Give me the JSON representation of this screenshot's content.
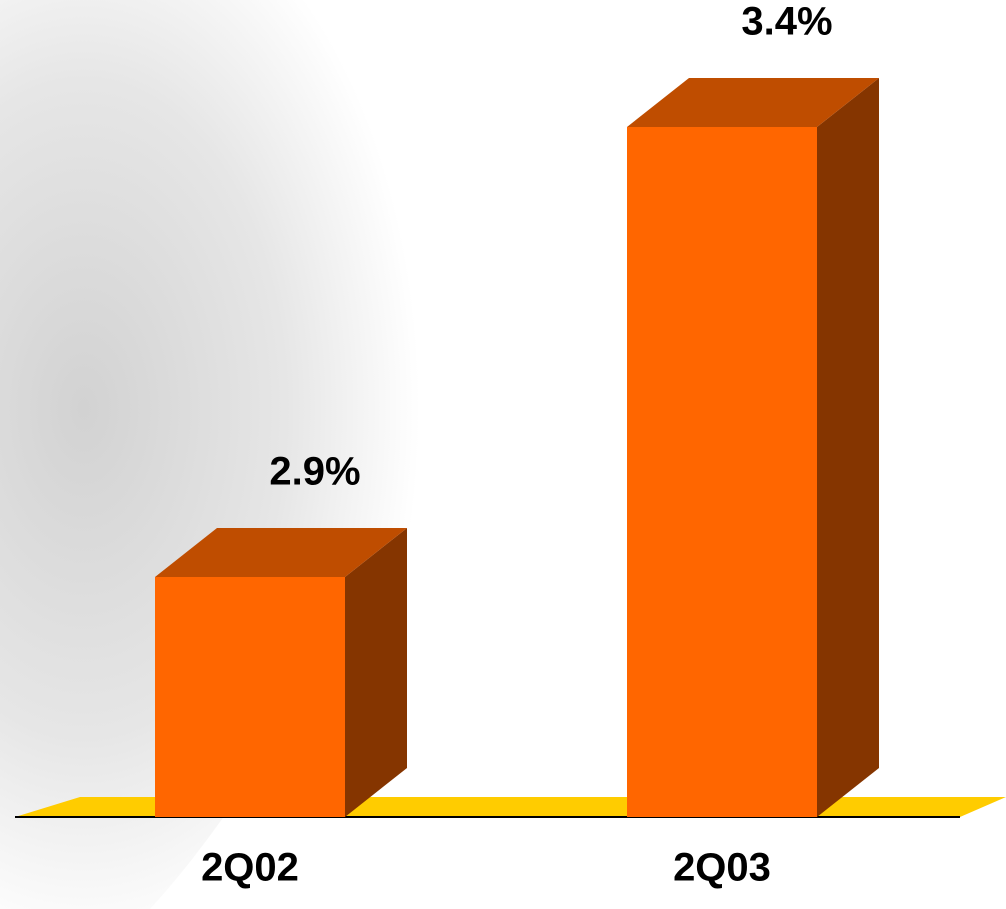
{
  "chart_data": {
    "type": "bar3d",
    "categories": [
      "2Q02",
      "2Q03"
    ],
    "values": [
      2.9,
      3.4
    ],
    "value_labels": [
      "2.9%",
      "3.4%"
    ],
    "color": "#ff6600"
  }
}
